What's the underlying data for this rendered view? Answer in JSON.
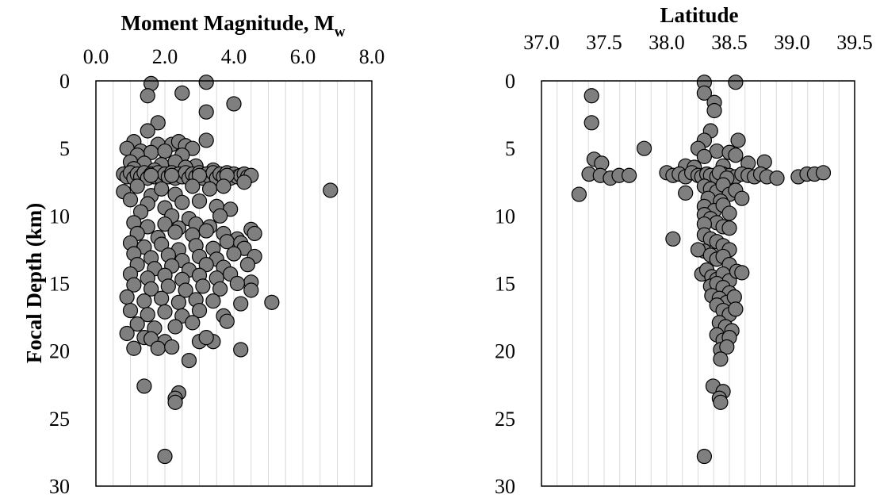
{
  "chart_data": [
    {
      "type": "scatter",
      "title": "",
      "x_title_main": "Moment Magnitude, M",
      "x_title_sub": "w",
      "ylabel": "Focal Depth (km)",
      "xlim": [
        0,
        8
      ],
      "ylim": [
        0,
        30
      ],
      "y_inverted": true,
      "x_ticks": [
        "0.0",
        "2.0",
        "4.0",
        "6.0",
        "8.0"
      ],
      "y_ticks": [
        "0",
        "5",
        "10",
        "15",
        "20",
        "25",
        "30"
      ],
      "x_minor_grid_step": 0.5,
      "colors": {
        "marker_fill": "#7f7f7f",
        "marker_edge": "#000000",
        "grid": "#d9d9d9"
      },
      "points": [
        [
          1.6,
          0.2
        ],
        [
          3.2,
          0.1
        ],
        [
          2.5,
          0.9
        ],
        [
          1.5,
          1.1
        ],
        [
          4.0,
          1.7
        ],
        [
          3.2,
          2.3
        ],
        [
          1.8,
          3.1
        ],
        [
          1.5,
          3.7
        ],
        [
          3.2,
          4.4
        ],
        [
          1.1,
          4.5
        ],
        [
          1.8,
          4.7
        ],
        [
          2.2,
          4.7
        ],
        [
          2.4,
          4.5
        ],
        [
          2.6,
          4.8
        ],
        [
          0.9,
          5.0
        ],
        [
          1.3,
          5.2
        ],
        [
          1.6,
          5.3
        ],
        [
          2.0,
          5.2
        ],
        [
          2.8,
          5.0
        ],
        [
          1.2,
          5.5
        ],
        [
          2.5,
          5.5
        ],
        [
          1.0,
          6.0
        ],
        [
          1.4,
          6.1
        ],
        [
          1.9,
          6.2
        ],
        [
          2.3,
          6.0
        ],
        [
          2.9,
          6.3
        ],
        [
          1.1,
          6.5
        ],
        [
          1.7,
          6.6
        ],
        [
          2.6,
          6.4
        ],
        [
          3.4,
          6.6
        ],
        [
          0.8,
          6.9
        ],
        [
          0.9,
          7.1
        ],
        [
          1.0,
          6.8
        ],
        [
          1.1,
          7.2
        ],
        [
          1.2,
          6.9
        ],
        [
          1.3,
          7.1
        ],
        [
          1.4,
          6.8
        ],
        [
          1.5,
          7.2
        ],
        [
          1.6,
          6.9
        ],
        [
          1.7,
          7.1
        ],
        [
          1.8,
          6.8
        ],
        [
          1.9,
          7.2
        ],
        [
          2.0,
          6.9
        ],
        [
          2.1,
          7.1
        ],
        [
          2.2,
          6.8
        ],
        [
          2.3,
          7.2
        ],
        [
          2.4,
          6.9
        ],
        [
          2.5,
          7.1
        ],
        [
          2.6,
          6.8
        ],
        [
          2.7,
          7.2
        ],
        [
          2.8,
          6.9
        ],
        [
          2.9,
          7.1
        ],
        [
          3.0,
          6.8
        ],
        [
          3.1,
          7.2
        ],
        [
          3.2,
          6.9
        ],
        [
          3.3,
          7.1
        ],
        [
          3.4,
          6.8
        ],
        [
          3.5,
          7.2
        ],
        [
          3.6,
          6.9
        ],
        [
          3.7,
          7.1
        ],
        [
          3.8,
          6.8
        ],
        [
          3.9,
          7.2
        ],
        [
          4.0,
          6.9
        ],
        [
          4.1,
          7.1
        ],
        [
          4.2,
          7.0
        ],
        [
          4.3,
          6.9
        ],
        [
          4.4,
          7.1
        ],
        [
          4.5,
          7.0
        ],
        [
          1.6,
          7.0
        ],
        [
          2.2,
          7.0
        ],
        [
          3.0,
          7.0
        ],
        [
          3.8,
          7.0
        ],
        [
          0.8,
          8.2
        ],
        [
          1.2,
          7.8
        ],
        [
          1.6,
          8.5
        ],
        [
          1.9,
          8.0
        ],
        [
          2.3,
          8.4
        ],
        [
          2.8,
          7.8
        ],
        [
          3.3,
          8.0
        ],
        [
          3.7,
          7.8
        ],
        [
          4.3,
          7.5
        ],
        [
          6.8,
          8.1
        ],
        [
          1.0,
          8.8
        ],
        [
          1.5,
          9.1
        ],
        [
          2.0,
          9.4
        ],
        [
          2.5,
          9.0
        ],
        [
          3.0,
          8.9
        ],
        [
          3.5,
          9.3
        ],
        [
          3.9,
          9.5
        ],
        [
          1.3,
          9.7
        ],
        [
          2.2,
          10.0
        ],
        [
          2.7,
          10.2
        ],
        [
          3.6,
          10.0
        ],
        [
          1.1,
          10.5
        ],
        [
          1.5,
          10.8
        ],
        [
          2.0,
          10.6
        ],
        [
          2.4,
          10.9
        ],
        [
          2.9,
          10.6
        ],
        [
          3.3,
          10.8
        ],
        [
          1.2,
          11.3
        ],
        [
          1.8,
          11.6
        ],
        [
          2.3,
          11.2
        ],
        [
          2.8,
          11.4
        ],
        [
          3.2,
          11.1
        ],
        [
          3.7,
          11.3
        ],
        [
          4.1,
          11.7
        ],
        [
          4.5,
          11.0
        ],
        [
          4.6,
          11.3
        ],
        [
          1.0,
          12.0
        ],
        [
          1.4,
          12.3
        ],
        [
          1.9,
          12.1
        ],
        [
          2.4,
          12.5
        ],
        [
          2.9,
          12.2
        ],
        [
          3.4,
          12.4
        ],
        [
          3.8,
          11.9
        ],
        [
          4.2,
          12.0
        ],
        [
          4.3,
          12.4
        ],
        [
          1.1,
          12.8
        ],
        [
          1.6,
          13.1
        ],
        [
          2.1,
          12.9
        ],
        [
          2.5,
          13.3
        ],
        [
          3.0,
          13.0
        ],
        [
          3.5,
          13.2
        ],
        [
          4.0,
          12.8
        ],
        [
          4.6,
          13.0
        ],
        [
          1.2,
          13.6
        ],
        [
          1.7,
          13.9
        ],
        [
          2.2,
          13.7
        ],
        [
          2.7,
          14.0
        ],
        [
          3.2,
          13.6
        ],
        [
          3.7,
          13.8
        ],
        [
          4.4,
          13.6
        ],
        [
          1.0,
          14.3
        ],
        [
          1.5,
          14.6
        ],
        [
          2.0,
          14.4
        ],
        [
          2.5,
          14.7
        ],
        [
          3.0,
          14.4
        ],
        [
          3.5,
          14.6
        ],
        [
          3.9,
          14.3
        ],
        [
          4.5,
          14.9
        ],
        [
          1.1,
          15.1
        ],
        [
          1.6,
          15.4
        ],
        [
          2.1,
          15.2
        ],
        [
          2.6,
          15.5
        ],
        [
          3.1,
          15.2
        ],
        [
          3.6,
          15.4
        ],
        [
          4.1,
          15.0
        ],
        [
          4.5,
          15.5
        ],
        [
          0.9,
          16.0
        ],
        [
          1.4,
          16.3
        ],
        [
          1.9,
          16.1
        ],
        [
          2.4,
          16.4
        ],
        [
          2.9,
          16.2
        ],
        [
          3.4,
          16.3
        ],
        [
          4.2,
          16.5
        ],
        [
          5.1,
          16.4
        ],
        [
          1.0,
          17.0
        ],
        [
          1.5,
          17.3
        ],
        [
          2.0,
          17.1
        ],
        [
          2.5,
          17.4
        ],
        [
          3.0,
          17.0
        ],
        [
          3.7,
          17.4
        ],
        [
          3.8,
          17.8
        ],
        [
          1.2,
          18.0
        ],
        [
          1.7,
          18.3
        ],
        [
          2.3,
          18.2
        ],
        [
          2.8,
          17.9
        ],
        [
          0.9,
          18.7
        ],
        [
          1.4,
          19.0
        ],
        [
          1.6,
          19.1
        ],
        [
          2.0,
          19.3
        ],
        [
          3.0,
          19.3
        ],
        [
          3.4,
          19.3
        ],
        [
          3.2,
          19.0
        ],
        [
          1.1,
          19.8
        ],
        [
          1.8,
          19.8
        ],
        [
          2.2,
          19.7
        ],
        [
          4.2,
          19.9
        ],
        [
          2.7,
          20.7
        ],
        [
          1.4,
          22.6
        ],
        [
          2.4,
          23.1
        ],
        [
          2.3,
          23.5
        ],
        [
          2.3,
          23.8
        ],
        [
          2.0,
          27.8
        ]
      ]
    },
    {
      "type": "scatter",
      "title": "",
      "xlabel": "Latitude",
      "ylabel": "",
      "xlim": [
        37.0,
        39.5
      ],
      "ylim": [
        0,
        30
      ],
      "y_inverted": true,
      "x_ticks": [
        "37.0",
        "37.5",
        "38.0",
        "38.5",
        "39.0",
        "39.5"
      ],
      "y_ticks": [
        "0",
        "5",
        "10",
        "15",
        "20",
        "25",
        "30"
      ],
      "x_minor_grid_step": 0.125,
      "colors": {
        "marker_fill": "#7f7f7f",
        "marker_edge": "#000000",
        "grid": "#d9d9d9"
      },
      "points": [
        [
          38.3,
          0.1
        ],
        [
          38.55,
          0.1
        ],
        [
          38.3,
          0.9
        ],
        [
          37.4,
          1.1
        ],
        [
          38.38,
          1.6
        ],
        [
          38.38,
          2.2
        ],
        [
          37.4,
          3.1
        ],
        [
          38.35,
          3.7
        ],
        [
          38.3,
          4.4
        ],
        [
          38.57,
          4.4
        ],
        [
          37.82,
          5.0
        ],
        [
          38.25,
          5.0
        ],
        [
          38.4,
          5.2
        ],
        [
          38.5,
          5.3
        ],
        [
          38.55,
          5.5
        ],
        [
          38.3,
          5.6
        ],
        [
          37.42,
          5.8
        ],
        [
          37.48,
          6.1
        ],
        [
          38.65,
          6.1
        ],
        [
          38.78,
          6.0
        ],
        [
          38.15,
          6.3
        ],
        [
          38.22,
          6.4
        ],
        [
          38.45,
          6.3
        ],
        [
          37.38,
          6.9
        ],
        [
          37.47,
          7.0
        ],
        [
          37.55,
          7.2
        ],
        [
          37.62,
          7.0
        ],
        [
          37.7,
          7.0
        ],
        [
          38.0,
          6.8
        ],
        [
          38.05,
          7.0
        ],
        [
          38.1,
          6.9
        ],
        [
          38.15,
          7.1
        ],
        [
          38.2,
          6.8
        ],
        [
          38.25,
          7.0
        ],
        [
          38.28,
          7.1
        ],
        [
          38.32,
          6.9
        ],
        [
          38.35,
          7.0
        ],
        [
          38.4,
          7.1
        ],
        [
          38.45,
          6.9
        ],
        [
          38.5,
          7.0
        ],
        [
          38.55,
          7.1
        ],
        [
          38.6,
          6.9
        ],
        [
          38.65,
          7.0
        ],
        [
          38.7,
          7.1
        ],
        [
          38.75,
          6.9
        ],
        [
          38.8,
          7.1
        ],
        [
          38.88,
          7.2
        ],
        [
          39.05,
          7.1
        ],
        [
          39.12,
          6.9
        ],
        [
          39.18,
          6.9
        ],
        [
          39.25,
          6.8
        ],
        [
          38.42,
          6.8
        ],
        [
          38.48,
          7.2
        ],
        [
          37.3,
          8.4
        ],
        [
          38.15,
          8.3
        ],
        [
          38.3,
          7.8
        ],
        [
          38.35,
          8.0
        ],
        [
          38.4,
          8.2
        ],
        [
          38.45,
          7.7
        ],
        [
          38.5,
          8.4
        ],
        [
          38.55,
          8.1
        ],
        [
          38.6,
          8.7
        ],
        [
          38.33,
          8.7
        ],
        [
          38.43,
          8.9
        ],
        [
          38.3,
          9.3
        ],
        [
          38.38,
          9.6
        ],
        [
          38.45,
          9.2
        ],
        [
          38.5,
          9.8
        ],
        [
          38.3,
          9.9
        ],
        [
          38.35,
          10.2
        ],
        [
          38.4,
          10.5
        ],
        [
          38.45,
          10.8
        ],
        [
          38.5,
          10.9
        ],
        [
          38.3,
          10.6
        ],
        [
          38.05,
          11.7
        ],
        [
          38.3,
          11.4
        ],
        [
          38.35,
          11.7
        ],
        [
          38.4,
          11.9
        ],
        [
          38.45,
          12.2
        ],
        [
          38.5,
          12.5
        ],
        [
          38.3,
          12.6
        ],
        [
          38.25,
          12.5
        ],
        [
          38.35,
          12.9
        ],
        [
          38.4,
          13.2
        ],
        [
          38.45,
          13.0
        ],
        [
          38.5,
          13.6
        ],
        [
          38.28,
          14.3
        ],
        [
          38.32,
          14.0
        ],
        [
          38.36,
          14.5
        ],
        [
          38.4,
          14.7
        ],
        [
          38.45,
          14.3
        ],
        [
          38.5,
          14.8
        ],
        [
          38.56,
          14.1
        ],
        [
          38.6,
          14.2
        ],
        [
          38.35,
          15.2
        ],
        [
          38.4,
          15.0
        ],
        [
          38.45,
          15.3
        ],
        [
          38.5,
          15.7
        ],
        [
          38.36,
          15.9
        ],
        [
          38.42,
          16.1
        ],
        [
          38.48,
          16.4
        ],
        [
          38.54,
          16.0
        ],
        [
          38.4,
          16.6
        ],
        [
          38.45,
          17.0
        ],
        [
          38.5,
          17.3
        ],
        [
          38.55,
          16.9
        ],
        [
          38.42,
          17.9
        ],
        [
          38.47,
          18.2
        ],
        [
          38.52,
          18.5
        ],
        [
          38.4,
          18.8
        ],
        [
          38.45,
          19.2
        ],
        [
          38.5,
          19.0
        ],
        [
          38.43,
          19.9
        ],
        [
          38.48,
          19.7
        ],
        [
          38.43,
          20.6
        ],
        [
          38.37,
          22.6
        ],
        [
          38.45,
          23.0
        ],
        [
          38.42,
          23.5
        ],
        [
          38.43,
          23.8
        ],
        [
          38.3,
          27.8
        ]
      ]
    }
  ]
}
